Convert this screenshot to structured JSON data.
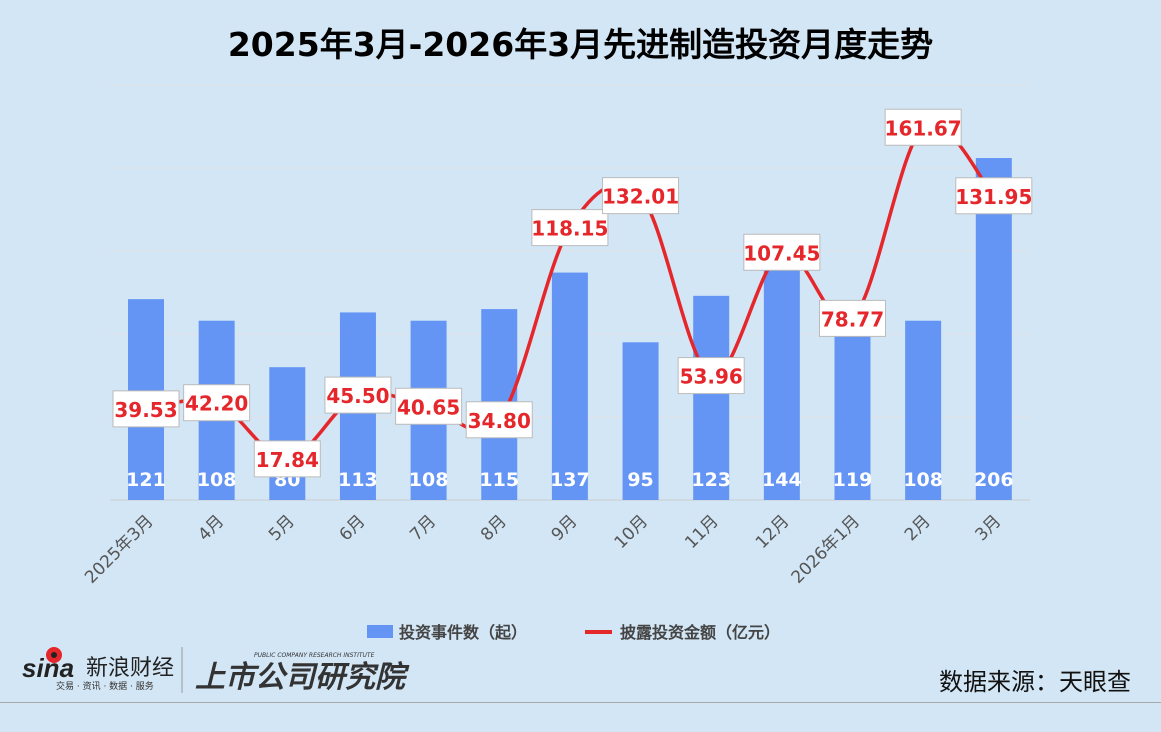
{
  "chart_data": {
    "type": "bar+line",
    "title": "2025年3月-2026年3月先进制造投资月度走势",
    "categories": [
      "2025年3月",
      "4月",
      "5月",
      "6月",
      "7月",
      "8月",
      "9月",
      "10月",
      "11月",
      "12月",
      "2026年1月",
      "2月",
      "3月"
    ],
    "series": [
      {
        "name": "投资事件数（起）",
        "type": "bar",
        "axis": "left",
        "color": "#6495f5",
        "values": [
          121,
          108,
          80,
          113,
          108,
          115,
          137,
          95,
          123,
          144,
          119,
          108,
          206
        ]
      },
      {
        "name": "披露投资金额（亿元）",
        "type": "line",
        "axis": "right",
        "color": "#e5262b",
        "values": [
          39.53,
          42.2,
          17.84,
          45.5,
          40.65,
          34.8,
          118.15,
          132.01,
          53.96,
          107.45,
          78.77,
          161.67,
          131.95
        ]
      }
    ],
    "left_ylim": [
      0,
      250
    ],
    "right_ylim": [
      0,
      180
    ],
    "grid": true,
    "legend": "bottom"
  },
  "footer": {
    "source": "数据来源：天眼查",
    "logo_sina": "sina新浪财经",
    "logo_sina_sub": "交易 · 资讯 · 数据 · 服务",
    "logo_institute": "上市公司研究院",
    "logo_institute_en": "PUBLIC COMPANY RESEARCH INSTITUTE"
  },
  "colors": {
    "background": "#d3e6f5",
    "bar": "#6495f5",
    "line": "#e5262b"
  }
}
